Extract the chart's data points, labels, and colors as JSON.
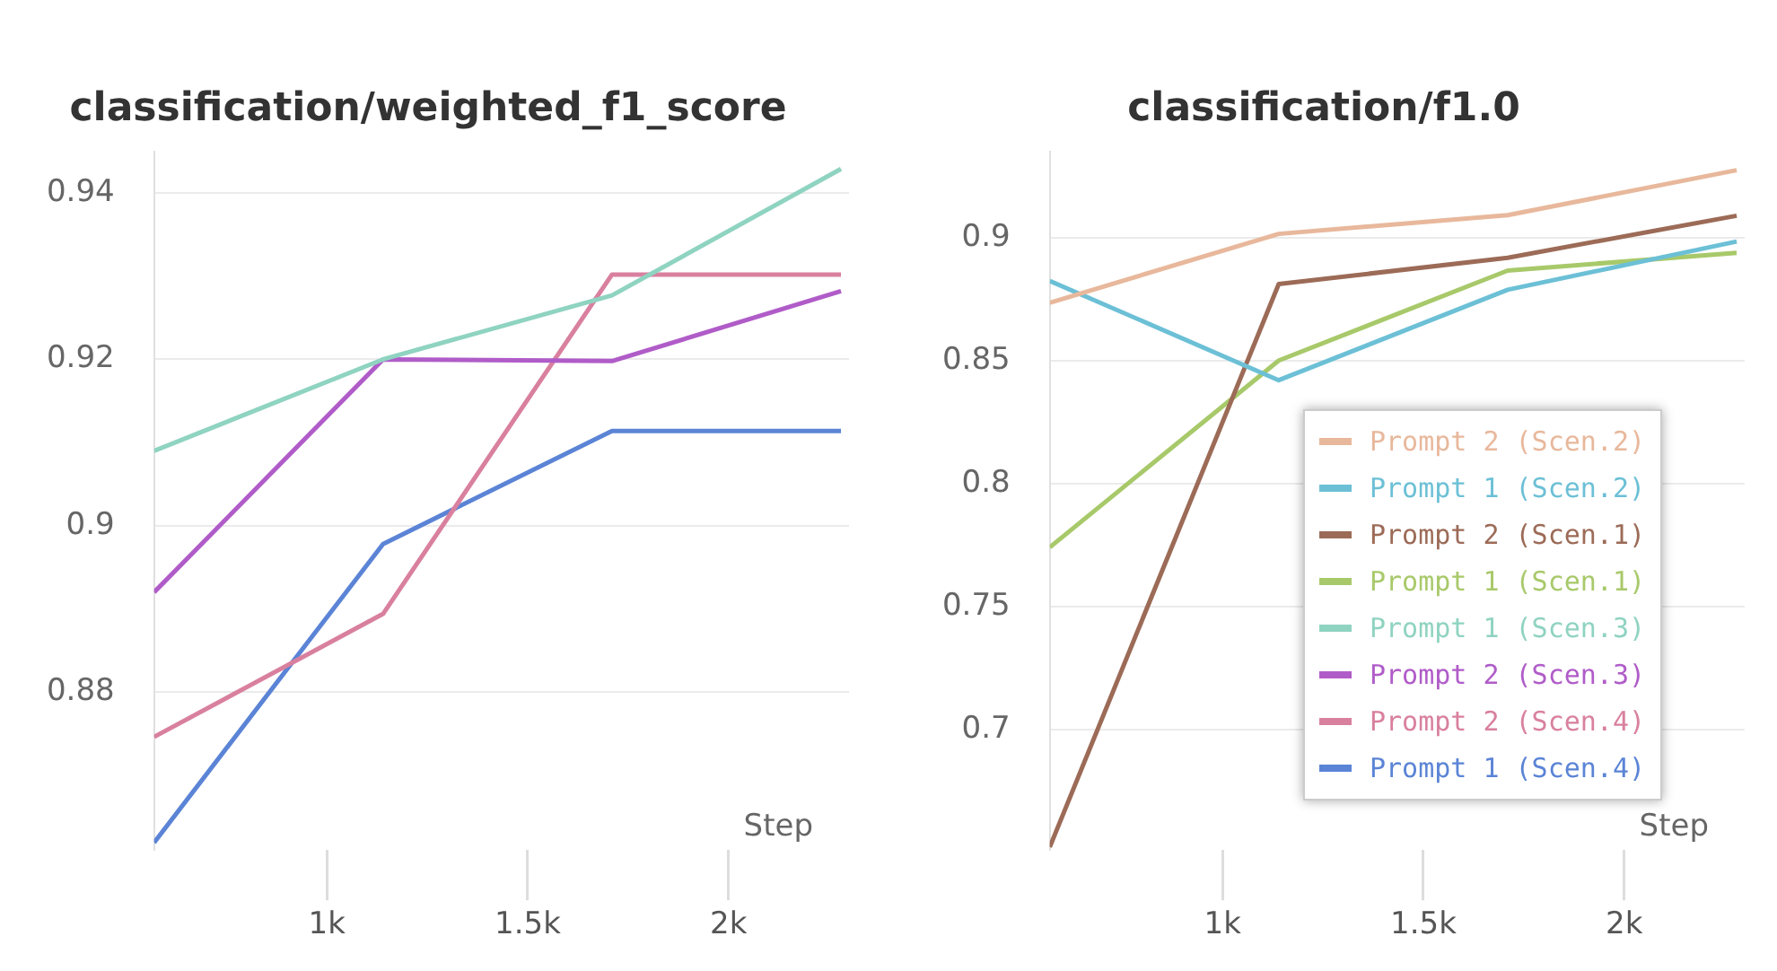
{
  "chart_data": [
    {
      "type": "line",
      "title": "classification/weighted_f1_score",
      "xlabel": "Step",
      "x": [
        570,
        1140,
        1710,
        2280
      ],
      "xlim": [
        570,
        2300
      ],
      "xticks": [
        {
          "value": 1000,
          "label": "1k"
        },
        {
          "value": 1500,
          "label": "1.5k"
        },
        {
          "value": 2000,
          "label": "2k"
        }
      ],
      "ylim": [
        0.861,
        0.945
      ],
      "yticks": [
        0.88,
        0.9,
        0.92,
        0.94
      ],
      "grid": "y",
      "legend": "right",
      "line_style": "solid",
      "series": [
        {
          "name": "Prompt 1 (Scen.3)",
          "color": "#8fd3c1",
          "values": [
            0.909,
            0.92,
            0.9277,
            0.9429
          ]
        },
        {
          "name": "Prompt 2 (Scen.3)",
          "color": "#b05cc8",
          "values": [
            0.892,
            0.92,
            0.9198,
            0.9282
          ]
        },
        {
          "name": "Prompt 2 (Scen.4)",
          "color": "#d9809f",
          "values": [
            0.8746,
            0.8894,
            0.9302,
            0.9302
          ]
        },
        {
          "name": "Prompt 1 (Scen.4)",
          "color": "#5b84d6",
          "values": [
            0.8619,
            0.8978,
            0.9114,
            0.9114
          ]
        }
      ]
    },
    {
      "type": "line",
      "title": "classification/f1.0",
      "xlabel": "Step",
      "x": [
        570,
        1140,
        1710,
        2280
      ],
      "xlim": [
        570,
        2300
      ],
      "xticks": [
        {
          "value": 1000,
          "label": "1k"
        },
        {
          "value": 1500,
          "label": "1.5k"
        },
        {
          "value": 2000,
          "label": "2k"
        }
      ],
      "ylim": [
        0.651,
        0.935
      ],
      "yticks": [
        0.7,
        0.75,
        0.8,
        0.85,
        0.9
      ],
      "grid": "y",
      "legend": "bottom right",
      "line_style": "solid",
      "series": [
        {
          "name": "Prompt 2 (Scen.2)",
          "color": "#e8b89c",
          "values": [
            0.8735,
            0.9015,
            0.9091,
            0.9274
          ]
        },
        {
          "name": "Prompt 1 (Scen.2)",
          "color": "#6cc0d6",
          "values": [
            0.8824,
            0.842,
            0.8788,
            0.8984
          ]
        },
        {
          "name": "Prompt 2 (Scen.1)",
          "color": "#9c6b57",
          "values": [
            0.6522,
            0.8811,
            0.8918,
            0.9089
          ]
        },
        {
          "name": "Prompt 1 (Scen.1)",
          "color": "#a8c96a",
          "values": [
            0.7741,
            0.85,
            0.8866,
            0.8938
          ]
        }
      ]
    }
  ]
}
